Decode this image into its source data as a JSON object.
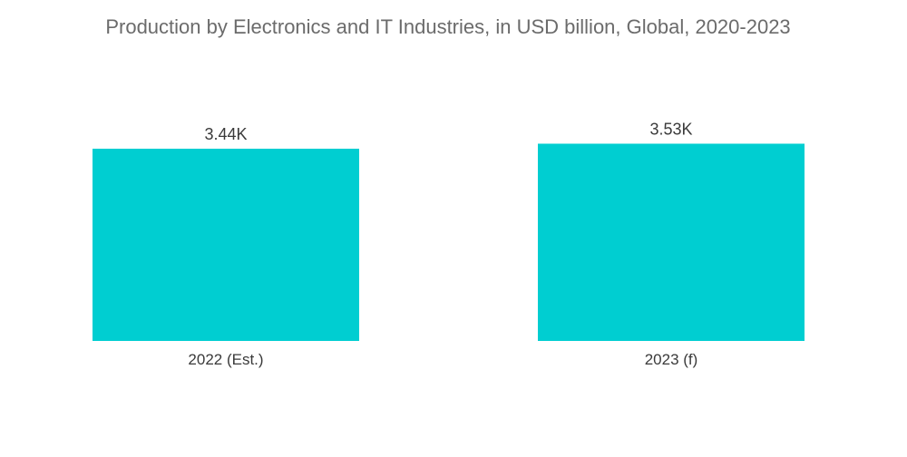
{
  "chart_data": {
    "type": "bar",
    "title": "Production by Electronics and IT Industries, in USD billion, Global, 2020-2023",
    "categories": [
      "2022 (Est.)",
      "2023 (f)"
    ],
    "values": [
      3440,
      3530
    ],
    "data_labels": [
      "3.44K",
      "3.53K"
    ],
    "xlabel": "",
    "ylabel": "",
    "ylim": [
      0,
      3700
    ],
    "grid": false,
    "legend": "none",
    "bar_color": "#00CED1"
  }
}
